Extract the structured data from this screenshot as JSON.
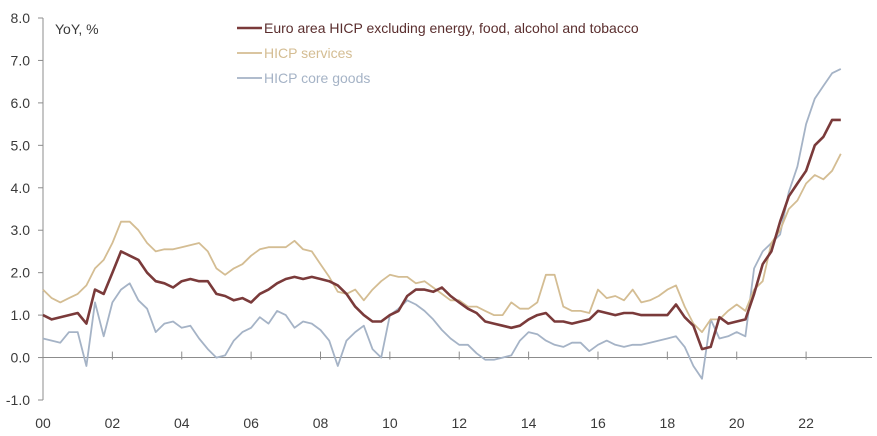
{
  "chart_data": {
    "type": "line",
    "title": "",
    "ylabel": "YoY, %",
    "xlabel": "",
    "ylim": [
      -1.0,
      8.0
    ],
    "yticks": [
      "8.0",
      "7.0",
      "6.0",
      "5.0",
      "4.0",
      "3.0",
      "2.0",
      "1.0",
      "0.0",
      "-1.0"
    ],
    "ytick_values": [
      8,
      7,
      6,
      5,
      4,
      3,
      2,
      1,
      0,
      -1
    ],
    "xticks": [
      "00",
      "02",
      "04",
      "06",
      "08",
      "10",
      "12",
      "14",
      "16",
      "18",
      "20",
      "22"
    ],
    "xtick_years": [
      2000,
      2002,
      2004,
      2006,
      2008,
      2010,
      2012,
      2014,
      2016,
      2018,
      2020,
      2022
    ],
    "xlim": [
      2000.0,
      2023.9
    ],
    "x_start": 2000.0,
    "x_step": 0.25,
    "grid": false,
    "legend_position": "top-center",
    "series": [
      {
        "name": "Euro area HICP excluding energy, food, alcohol and tobacco",
        "color": "#7a3a3a",
        "values": [
          1.0,
          0.9,
          0.95,
          1.0,
          1.05,
          0.8,
          1.6,
          1.5,
          2.0,
          2.5,
          2.4,
          2.3,
          2.0,
          1.8,
          1.75,
          1.65,
          1.8,
          1.85,
          1.8,
          1.8,
          1.5,
          1.45,
          1.35,
          1.4,
          1.3,
          1.5,
          1.6,
          1.75,
          1.85,
          1.9,
          1.85,
          1.9,
          1.85,
          1.8,
          1.7,
          1.5,
          1.2,
          1.0,
          0.85,
          0.85,
          1.0,
          1.1,
          1.45,
          1.6,
          1.6,
          1.55,
          1.65,
          1.45,
          1.3,
          1.15,
          1.05,
          0.85,
          0.8,
          0.75,
          0.7,
          0.75,
          0.9,
          1.0,
          1.05,
          0.85,
          0.85,
          0.8,
          0.85,
          0.9,
          1.1,
          1.05,
          1.0,
          1.05,
          1.05,
          1.0,
          1.0,
          1.0,
          1.0,
          1.25,
          0.95,
          0.75,
          0.2,
          0.25,
          0.95,
          0.8,
          0.85,
          0.9,
          1.5,
          2.2,
          2.5,
          3.2,
          3.8,
          4.1,
          4.4,
          5.0,
          5.2,
          5.6,
          5.6
        ]
      },
      {
        "name": "HICP services",
        "color": "#d4bd93",
        "values": [
          1.6,
          1.4,
          1.3,
          1.4,
          1.5,
          1.7,
          2.1,
          2.3,
          2.7,
          3.2,
          3.2,
          3.0,
          2.7,
          2.5,
          2.55,
          2.55,
          2.6,
          2.65,
          2.7,
          2.5,
          2.1,
          1.95,
          2.1,
          2.2,
          2.4,
          2.55,
          2.6,
          2.6,
          2.6,
          2.75,
          2.55,
          2.5,
          2.2,
          1.9,
          1.55,
          1.5,
          1.6,
          1.35,
          1.6,
          1.8,
          1.95,
          1.9,
          1.9,
          1.75,
          1.8,
          1.65,
          1.5,
          1.35,
          1.35,
          1.2,
          1.2,
          1.1,
          1.0,
          1.0,
          1.3,
          1.15,
          1.15,
          1.3,
          1.95,
          1.95,
          1.2,
          1.1,
          1.1,
          1.05,
          1.6,
          1.4,
          1.45,
          1.35,
          1.6,
          1.3,
          1.35,
          1.45,
          1.6,
          1.7,
          1.2,
          0.8,
          0.6,
          0.9,
          0.9,
          1.1,
          1.25,
          1.1,
          1.6,
          1.8,
          2.7,
          3.0,
          3.5,
          3.7,
          4.1,
          4.3,
          4.2,
          4.4,
          4.8
        ]
      },
      {
        "name": "HICP core goods",
        "color": "#a5b3c6",
        "values": [
          0.45,
          0.4,
          0.35,
          0.6,
          0.6,
          -0.2,
          1.3,
          0.5,
          1.3,
          1.6,
          1.75,
          1.35,
          1.15,
          0.6,
          0.8,
          0.85,
          0.7,
          0.75,
          0.45,
          0.2,
          0.0,
          0.05,
          0.4,
          0.6,
          0.7,
          0.95,
          0.8,
          1.1,
          1.0,
          0.7,
          0.85,
          0.8,
          0.65,
          0.4,
          -0.2,
          0.4,
          0.6,
          0.75,
          0.2,
          0.0,
          1.0,
          1.15,
          1.35,
          1.25,
          1.1,
          0.9,
          0.65,
          0.45,
          0.3,
          0.3,
          0.1,
          -0.05,
          -0.05,
          0.0,
          0.05,
          0.4,
          0.6,
          0.55,
          0.4,
          0.3,
          0.25,
          0.35,
          0.35,
          0.15,
          0.3,
          0.4,
          0.3,
          0.25,
          0.3,
          0.3,
          0.35,
          0.4,
          0.45,
          0.5,
          0.25,
          -0.2,
          -0.5,
          0.9,
          0.45,
          0.5,
          0.6,
          0.5,
          2.1,
          2.5,
          2.7,
          2.9,
          3.9,
          4.5,
          5.5,
          6.1,
          6.4,
          6.7,
          6.8
        ]
      }
    ]
  }
}
